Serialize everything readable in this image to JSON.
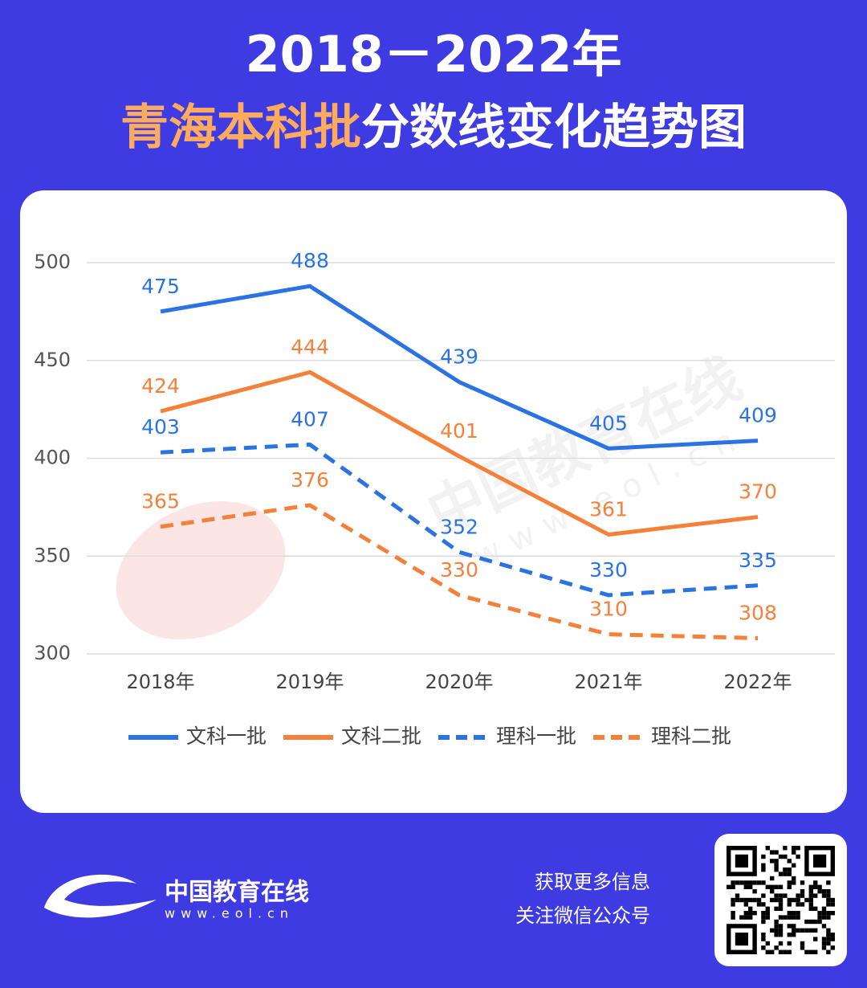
{
  "header": {
    "title_line1": "2018－2022年",
    "title_highlight": "青海本科批",
    "title_rest": "分数线变化趋势图"
  },
  "chart_data": {
    "type": "line",
    "categories": [
      "2018年",
      "2019年",
      "2020年",
      "2021年",
      "2022年"
    ],
    "series": [
      {
        "name": "文科一批",
        "color": "#2b73e3",
        "line_style": "solid",
        "values": [
          475,
          488,
          439,
          405,
          409
        ]
      },
      {
        "name": "文科二批",
        "color": "#f5803a",
        "line_style": "solid",
        "values": [
          424,
          444,
          401,
          361,
          370
        ]
      },
      {
        "name": "理科一批",
        "color": "#2b73e3",
        "line_style": "dashed",
        "values": [
          403,
          407,
          352,
          330,
          335
        ]
      },
      {
        "name": "理科二批",
        "color": "#f5803a",
        "line_style": "dashed",
        "values": [
          365,
          376,
          330,
          310,
          308
        ]
      }
    ],
    "ylim": [
      300,
      500
    ],
    "yticks": [
      300,
      350,
      400,
      450,
      500
    ],
    "grid": true,
    "legend": "bottom"
  },
  "footer": {
    "brand": "中国教育在线",
    "url": "www.eol.cn",
    "line1": "获取更多信息",
    "line2": "关注微信公众号"
  }
}
